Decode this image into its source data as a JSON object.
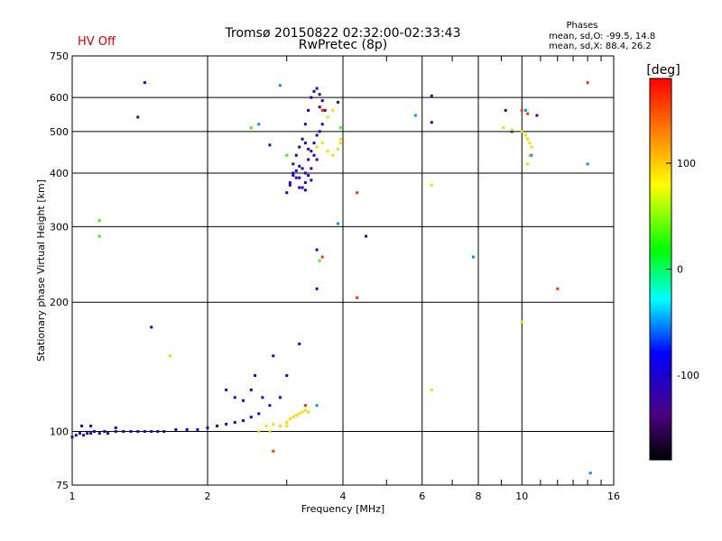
{
  "chart_data": {
    "type": "scatter",
    "title": "Tromsø 20150822 02:32:00-02:33:43",
    "subtitle": "RwPretec (8p)",
    "status_text": "HV Off",
    "xlabel": "Frequency [MHz]",
    "ylabel": "Stationary phase Virtual Height [km]",
    "x_scale": "log",
    "y_scale": "log",
    "xlim": [
      1,
      16
    ],
    "ylim": [
      75,
      750
    ],
    "x_ticks": [
      1,
      2,
      4,
      6,
      8,
      10,
      16
    ],
    "y_ticks": [
      75,
      100,
      200,
      300,
      400,
      500,
      600,
      750
    ],
    "grid": true,
    "phases_legend": {
      "title": "Phases",
      "line_o": "mean, sd,O: -99.5, 14.8",
      "line_x": "mean, sd,X:  88.4, 26.2"
    },
    "colorbar": {
      "label": "[deg]",
      "range": [
        -180,
        180
      ],
      "ticks": [
        100,
        0,
        -100
      ]
    },
    "series": [
      {
        "name": "O-mode trace (low layer)",
        "phase_deg": -110,
        "points": [
          [
            1.0,
            97
          ],
          [
            1.02,
            98
          ],
          [
            1.04,
            99
          ],
          [
            1.06,
            98
          ],
          [
            1.08,
            99
          ],
          [
            1.1,
            99
          ],
          [
            1.12,
            100
          ],
          [
            1.15,
            99
          ],
          [
            1.18,
            100
          ],
          [
            1.2,
            99
          ],
          [
            1.25,
            100
          ],
          [
            1.3,
            100
          ],
          [
            1.35,
            100
          ],
          [
            1.4,
            100
          ],
          [
            1.45,
            100
          ],
          [
            1.5,
            100
          ],
          [
            1.55,
            100
          ],
          [
            1.6,
            100
          ],
          [
            1.7,
            101
          ],
          [
            1.8,
            101
          ],
          [
            1.9,
            101
          ],
          [
            2.0,
            102
          ],
          [
            2.1,
            103
          ],
          [
            2.2,
            104
          ],
          [
            2.3,
            105
          ],
          [
            2.4,
            106
          ],
          [
            2.5,
            108
          ],
          [
            2.6,
            110
          ],
          [
            2.2,
            125
          ],
          [
            2.3,
            120
          ],
          [
            2.4,
            118
          ],
          [
            2.5,
            125
          ],
          [
            2.55,
            135
          ],
          [
            2.65,
            120
          ],
          [
            2.75,
            115
          ],
          [
            2.9,
            120
          ],
          [
            3.0,
            135
          ],
          [
            3.2,
            160
          ],
          [
            2.8,
            150
          ],
          [
            1.05,
            103
          ],
          [
            1.1,
            103
          ],
          [
            1.25,
            102
          ],
          [
            1.5,
            175
          ],
          [
            1.45,
            650
          ]
        ]
      },
      {
        "name": "O-mode trace (F layer)",
        "phase_deg": -110,
        "points": [
          [
            3.0,
            360
          ],
          [
            3.05,
            380
          ],
          [
            3.1,
            400
          ],
          [
            3.1,
            420
          ],
          [
            3.15,
            390
          ],
          [
            3.15,
            440
          ],
          [
            3.2,
            370
          ],
          [
            3.2,
            460
          ],
          [
            3.25,
            410
          ],
          [
            3.25,
            480
          ],
          [
            3.3,
            400
          ],
          [
            3.3,
            520
          ],
          [
            3.35,
            430
          ],
          [
            3.35,
            560
          ],
          [
            3.4,
            450
          ],
          [
            3.4,
            600
          ],
          [
            3.45,
            470
          ],
          [
            3.45,
            620
          ],
          [
            3.5,
            490
          ],
          [
            3.5,
            630
          ],
          [
            3.55,
            500
          ],
          [
            3.55,
            610
          ],
          [
            3.6,
            520
          ],
          [
            3.6,
            590
          ],
          [
            3.2,
            390
          ],
          [
            3.25,
            370
          ],
          [
            3.3,
            380
          ],
          [
            3.35,
            395
          ],
          [
            3.4,
            385
          ],
          [
            3.15,
            405
          ],
          [
            3.2,
            415
          ],
          [
            3.1,
            395
          ],
          [
            3.05,
            375
          ],
          [
            3.3,
            365
          ],
          [
            3.4,
            410
          ],
          [
            3.5,
            430
          ],
          [
            3.45,
            440
          ],
          [
            3.35,
            455
          ],
          [
            3.3,
            470
          ],
          [
            3.5,
            265
          ],
          [
            3.5,
            215
          ],
          [
            6.3,
            605
          ],
          [
            6.3,
            525
          ],
          [
            9.5,
            500
          ]
        ]
      },
      {
        "name": "X-mode trace",
        "phase_deg": 95,
        "points": [
          [
            2.6,
            100
          ],
          [
            2.7,
            103
          ],
          [
            2.8,
            104
          ],
          [
            2.9,
            103
          ],
          [
            3.0,
            105
          ],
          [
            3.05,
            107
          ],
          [
            3.1,
            108
          ],
          [
            3.15,
            109
          ],
          [
            3.2,
            110
          ],
          [
            3.25,
            111
          ],
          [
            3.3,
            112
          ],
          [
            3.35,
            111
          ],
          [
            3.0,
            103
          ],
          [
            2.75,
            100
          ],
          [
            3.5,
            460
          ],
          [
            3.6,
            470
          ],
          [
            3.7,
            450
          ],
          [
            3.8,
            440
          ],
          [
            3.9,
            455
          ],
          [
            3.95,
            470
          ],
          [
            3.95,
            480
          ],
          [
            3.8,
            560
          ],
          [
            3.7,
            540
          ],
          [
            6.3,
            375
          ],
          [
            1.65,
            150
          ],
          [
            6.3,
            125
          ],
          [
            10.0,
            180
          ],
          [
            10.0,
            500
          ],
          [
            10.2,
            490
          ],
          [
            10.3,
            480
          ],
          [
            10.4,
            470
          ],
          [
            10.5,
            460
          ],
          [
            10.4,
            440
          ],
          [
            10.3,
            420
          ],
          [
            9.1,
            510
          ],
          [
            9.5,
            505
          ]
        ]
      },
      {
        "name": "cyan points",
        "phase_deg": -50,
        "points": [
          [
            2.9,
            640
          ],
          [
            3.5,
            115
          ],
          [
            5.8,
            545
          ],
          [
            7.8,
            255
          ],
          [
            3.9,
            305
          ],
          [
            2.6,
            520
          ],
          [
            14.0,
            420
          ],
          [
            10.2,
            560
          ],
          [
            10.5,
            440
          ],
          [
            14.2,
            80
          ]
        ]
      },
      {
        "name": "green points",
        "phase_deg": 30,
        "points": [
          [
            1.15,
            310
          ],
          [
            1.15,
            285
          ],
          [
            2.5,
            510
          ],
          [
            3.0,
            440
          ],
          [
            3.55,
            250
          ],
          [
            3.95,
            510
          ]
        ]
      },
      {
        "name": "red/orange points",
        "phase_deg": 160,
        "points": [
          [
            3.6,
            255
          ],
          [
            4.3,
            360
          ],
          [
            4.3,
            205
          ],
          [
            3.6,
            560
          ],
          [
            10.0,
            560
          ],
          [
            10.3,
            550
          ],
          [
            12.0,
            215
          ],
          [
            14.0,
            650
          ],
          [
            3.3,
            115
          ],
          [
            2.8,
            90
          ]
        ]
      },
      {
        "name": "dark points",
        "phase_deg": -135,
        "points": [
          [
            1.4,
            540
          ],
          [
            2.75,
            465
          ],
          [
            3.55,
            570
          ],
          [
            3.65,
            560
          ],
          [
            3.9,
            585
          ],
          [
            4.5,
            285
          ],
          [
            9.2,
            560
          ],
          [
            10.8,
            545
          ]
        ]
      }
    ]
  }
}
